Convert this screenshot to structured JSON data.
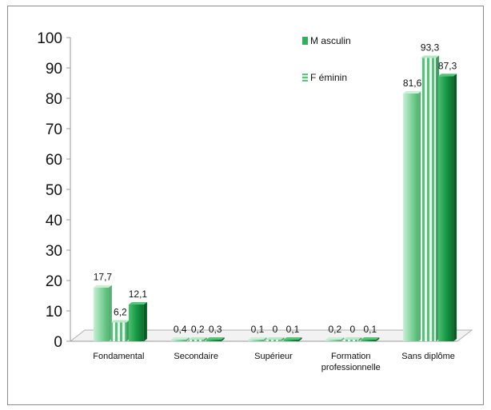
{
  "chart_data": {
    "type": "bar",
    "title": "",
    "xlabel": "",
    "ylabel": "",
    "ylim": [
      0,
      100
    ],
    "yticks": [
      "0",
      "10",
      "20",
      "30",
      "40",
      "50",
      "60",
      "70",
      "80",
      "90",
      "100"
    ],
    "grid": false,
    "legend_position": "top-right",
    "categories": [
      [
        "Fondamental"
      ],
      [
        "Secondaire"
      ],
      [
        "Supérieur"
      ],
      [
        "Formation",
        "professionnelle"
      ],
      [
        "Sans diplôme"
      ]
    ],
    "series": [
      {
        "name": "Masculin",
        "values": [
          17.7,
          0.4,
          0.1,
          0.2,
          81.6
        ],
        "labels": [
          "17,7",
          "0,4",
          "0,1",
          "0,2",
          "81,6"
        ],
        "color": "#8ed8a6",
        "pattern": "solid"
      },
      {
        "name": "",
        "values": [
          6.2,
          0.2,
          0,
          0,
          93.3
        ],
        "labels": [
          "6,2",
          "0,2",
          "0",
          "0",
          "93,3"
        ],
        "color": "#5cc47f",
        "pattern": "striped"
      },
      {
        "name": "Féminin",
        "values": [
          12.1,
          0.3,
          0.1,
          0.1,
          87.3
        ],
        "labels": [
          "12,1",
          "0,3",
          "0,1",
          "0,1",
          "87,3"
        ],
        "color": "#179a45",
        "pattern": "solid"
      }
    ],
    "legend": [
      {
        "label": "M asculin",
        "color": "#2fb05c",
        "pattern": "solid"
      },
      {
        "label": "F éminin",
        "color": "#8ed8a6",
        "pattern": "striped"
      }
    ]
  }
}
